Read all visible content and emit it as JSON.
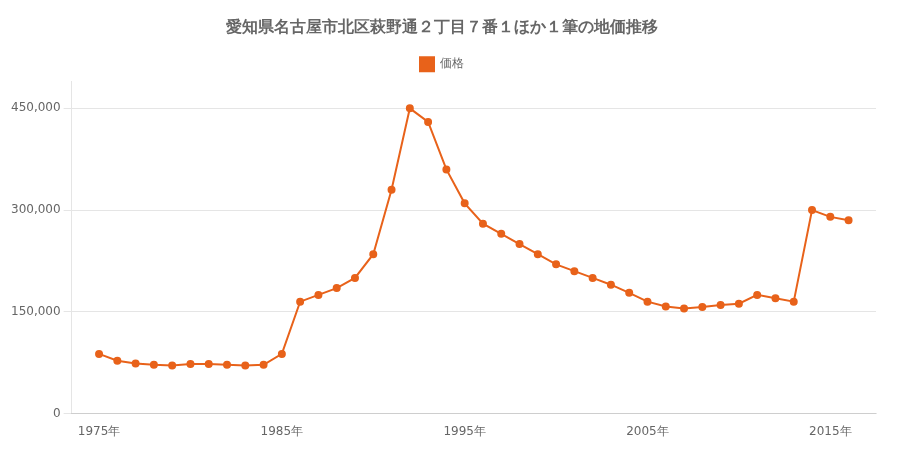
{
  "chart_data": {
    "type": "line",
    "title": "愛知県名古屋市北区萩野通２丁目７番１ほか１筆の地価推移",
    "x": [
      1975,
      1976,
      1977,
      1978,
      1979,
      1980,
      1981,
      1982,
      1983,
      1984,
      1985,
      1986,
      1987,
      1988,
      1989,
      1990,
      1991,
      1992,
      1993,
      1994,
      1995,
      1996,
      1997,
      1998,
      1999,
      2000,
      2001,
      2002,
      2003,
      2004,
      2005,
      2006,
      2007,
      2008,
      2009,
      2010,
      2011,
      2012,
      2013,
      2014,
      2015,
      2016
    ],
    "series": [
      {
        "name": "価格",
        "color": "#e8621a",
        "marker": "circle",
        "line_style": "solid",
        "values": [
          88000,
          78000,
          74000,
          72000,
          71000,
          73000,
          73000,
          72000,
          71000,
          72000,
          88000,
          165000,
          175000,
          185000,
          200000,
          235000,
          330000,
          450000,
          430000,
          360000,
          310000,
          280000,
          265000,
          250000,
          235000,
          220000,
          210000,
          200000,
          190000,
          178000,
          165000,
          158000,
          155000,
          157000,
          160000,
          162000,
          175000,
          170000,
          165000,
          300000,
          290000,
          285000
        ]
      }
    ],
    "xlim": [
      1973.5,
      2017.5
    ],
    "xticks": [
      {
        "value": 1975,
        "label": "1975年"
      },
      {
        "value": 1985,
        "label": "1985年"
      },
      {
        "value": 1995,
        "label": "1995年"
      },
      {
        "value": 2005,
        "label": "2005年"
      },
      {
        "value": 2015,
        "label": "2015年"
      }
    ],
    "ylim": [
      0,
      490000
    ],
    "yticks": [
      0,
      {
        "value": 150000,
        "label": "150,000"
      },
      {
        "value": 300000,
        "label": "300,000"
      },
      {
        "value": 450000,
        "label": "450,000"
      }
    ],
    "grid": "y",
    "legend": "top"
  }
}
